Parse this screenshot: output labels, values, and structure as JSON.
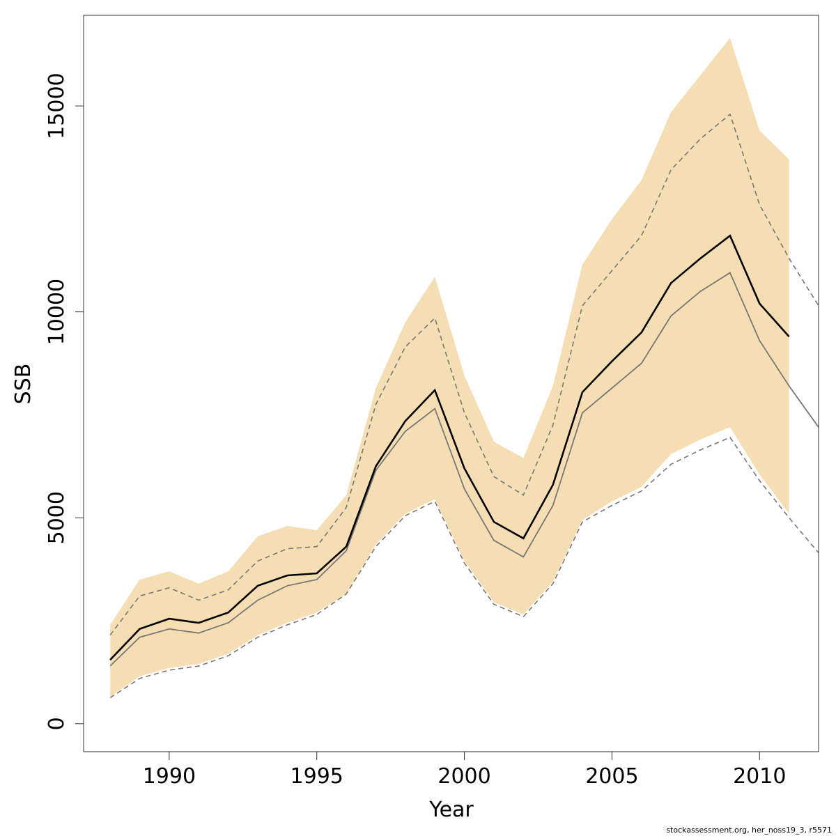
{
  "chart_data": {
    "type": "line",
    "xlabel": "Year",
    "ylabel": "SSB",
    "xlim": [
      1987.1,
      2012
    ],
    "ylim": [
      -680,
      17200
    ],
    "xticks": [
      1990,
      1995,
      2000,
      2005,
      2010
    ],
    "yticks": [
      0,
      5000,
      10000,
      15000
    ],
    "grid": false,
    "colors": {
      "band": "#f5deb3",
      "estimate": "#000000",
      "secondary": "#777777",
      "bounds": "#777777"
    },
    "series": [
      {
        "role": "confidence-band",
        "x": [
          1988,
          1989,
          1990,
          1991,
          1992,
          1993,
          1994,
          1995,
          1996,
          1997,
          1998,
          1999,
          2000,
          2001,
          2002,
          2003,
          2004,
          2005,
          2006,
          2007,
          2008,
          2009,
          2010,
          2011
        ],
        "upper": [
          2400,
          3500,
          3700,
          3400,
          3700,
          4550,
          4800,
          4700,
          5550,
          8150,
          9750,
          10850,
          8450,
          6850,
          6450,
          8200,
          11150,
          12250,
          13200,
          14850,
          15750,
          16650,
          14400,
          13700
        ],
        "lower": [
          650,
          1150,
          1350,
          1450,
          1700,
          2150,
          2450,
          2700,
          3150,
          4350,
          5100,
          5450,
          3950,
          2950,
          2650,
          3450,
          4950,
          5400,
          5750,
          6550,
          6900,
          7200,
          6050,
          5100
        ]
      },
      {
        "role": "estimate",
        "x": [
          1988,
          1989,
          1990,
          1991,
          1992,
          1993,
          1994,
          1995,
          1996,
          1997,
          1998,
          1999,
          2000,
          2001,
          2002,
          2003,
          2004,
          2005,
          2006,
          2007,
          2008,
          2009,
          2010,
          2011
        ],
        "values": [
          1550,
          2300,
          2550,
          2450,
          2700,
          3350,
          3600,
          3650,
          4300,
          6250,
          7350,
          8100,
          6200,
          4900,
          4500,
          5800,
          8050,
          8800,
          9500,
          10700,
          11300,
          11850,
          10200,
          9400
        ]
      },
      {
        "role": "secondary-estimate",
        "x": [
          1988,
          1989,
          1990,
          1991,
          1992,
          1993,
          1994,
          1995,
          1996,
          1997,
          1998,
          1999,
          2000,
          2001,
          2002,
          2003,
          2004,
          2005,
          2006,
          2007,
          2008,
          2009,
          2010,
          2011,
          2012
        ],
        "values": [
          1400,
          2100,
          2300,
          2200,
          2450,
          3000,
          3350,
          3500,
          4200,
          6150,
          7100,
          7650,
          5700,
          4450,
          4050,
          5300,
          7550,
          8150,
          8750,
          9900,
          10500,
          10950,
          9300,
          8200,
          7200
        ]
      },
      {
        "role": "secondary-upper",
        "x": [
          1988,
          1989,
          1990,
          1991,
          1992,
          1993,
          1994,
          1995,
          1996,
          1997,
          1998,
          1999,
          2000,
          2001,
          2002,
          2003,
          2004,
          2005,
          2006,
          2007,
          2008,
          2009,
          2010,
          2011,
          2012
        ],
        "values": [
          2150,
          3100,
          3300,
          3000,
          3250,
          3950,
          4250,
          4300,
          5250,
          7750,
          9150,
          9850,
          7550,
          6000,
          5550,
          7250,
          10150,
          11000,
          11850,
          13450,
          14200,
          14800,
          12600,
          11300,
          10150
        ]
      },
      {
        "role": "secondary-lower",
        "x": [
          1988,
          1989,
          1990,
          1991,
          1992,
          1993,
          1994,
          1995,
          1996,
          1997,
          1998,
          1999,
          2000,
          2001,
          2002,
          2003,
          2004,
          2005,
          2006,
          2007,
          2008,
          2009,
          2010,
          2011,
          2012
        ],
        "values": [
          630,
          1100,
          1300,
          1400,
          1650,
          2100,
          2400,
          2650,
          3150,
          4300,
          5050,
          5400,
          3900,
          2900,
          2600,
          3400,
          4900,
          5300,
          5650,
          6300,
          6650,
          6950,
          5900,
          5000,
          4150
        ]
      }
    ]
  },
  "footnote": "stockassessment.org, her_noss19_3, r5571"
}
